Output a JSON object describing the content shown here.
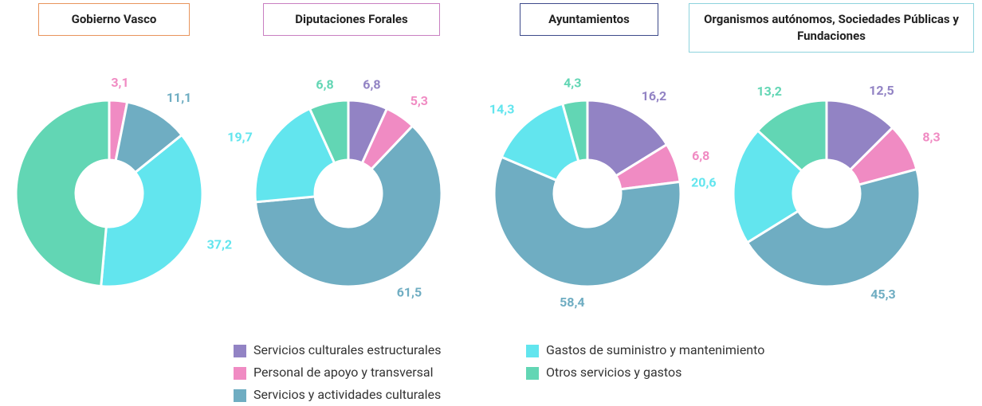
{
  "chart_data": [
    {
      "type": "pie",
      "title": "Gobierno Vasco",
      "values": [
        null,
        3.1,
        11.1,
        37.2,
        48.6
      ],
      "value_labels": [
        null,
        "3,1",
        "11,1",
        "37,2",
        "48,6"
      ],
      "border": "#e8945c"
    },
    {
      "type": "pie",
      "title": "Diputaciones Forales",
      "values": [
        6.8,
        5.3,
        61.5,
        19.7,
        6.8
      ],
      "value_labels": [
        "6,8",
        "5,3",
        "61,5",
        "19,7",
        "6,8"
      ],
      "border": "#c97fc1"
    },
    {
      "type": "pie",
      "title": "Ayuntamientos",
      "values": [
        16.2,
        6.8,
        58.4,
        14.3,
        4.3
      ],
      "value_labels": [
        "16,2",
        "6,8",
        "58,4",
        "14,3",
        "4,3"
      ],
      "border": "#3d4a8a"
    },
    {
      "type": "pie",
      "title": "Organismos autónomos, Sociedades Públicas y Fundaciones",
      "values": [
        12.5,
        8.3,
        45.3,
        20.6,
        13.2
      ],
      "value_labels": [
        "12,5",
        "8,3",
        "45,3",
        "20,6",
        "13,2"
      ],
      "border": "#8dd3dd"
    }
  ],
  "legend": {
    "categories": [
      "Servicios culturales estructurales",
      "Personal de apoyo y transversal",
      "Servicios y actividades culturales",
      "Gastos de suministro y mantenimiento",
      "Otros servicios y gastos"
    ],
    "colors": [
      "#9283c4",
      "#f08bc3",
      "#6fadc2",
      "#62e5ee",
      "#62d6b4"
    ]
  }
}
